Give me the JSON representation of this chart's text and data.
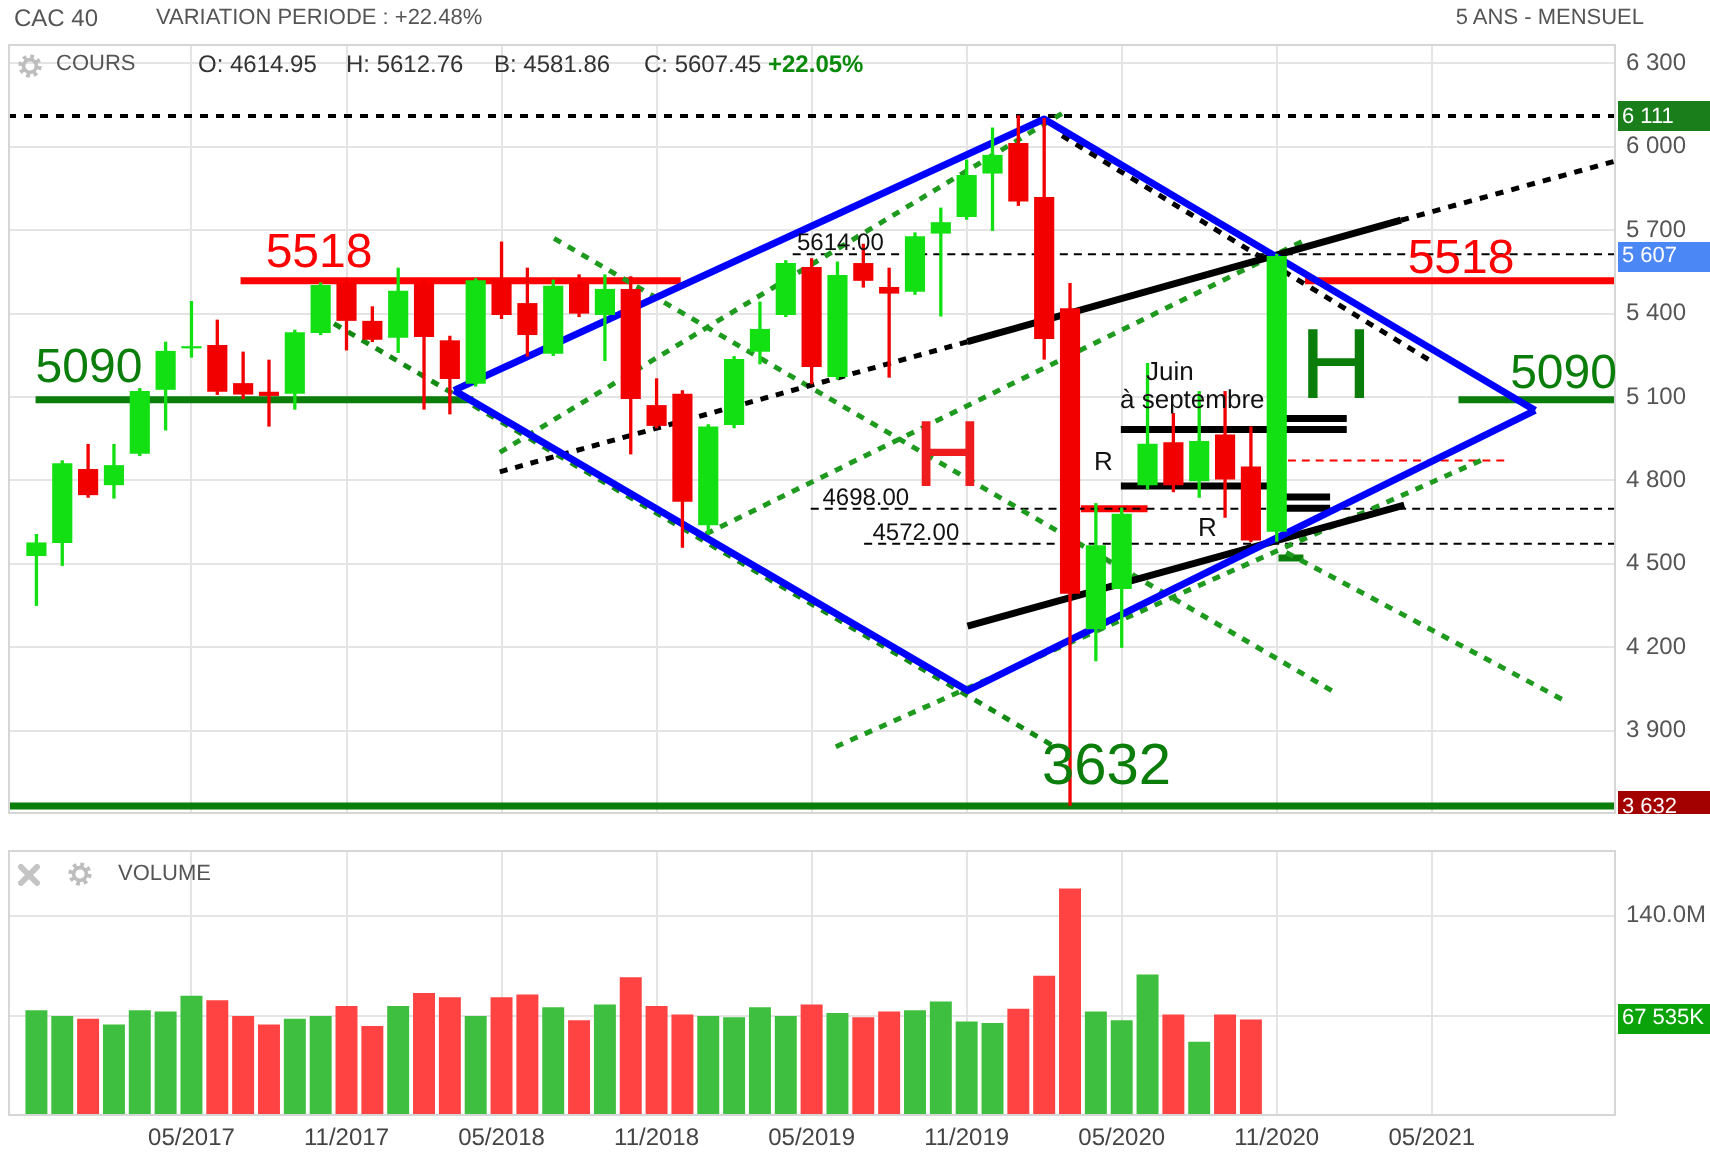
{
  "chart_data": [
    {
      "type": "candlestick",
      "title": "CAC 40",
      "subtitle": "VARIATION PERIODE : +22.48%",
      "x": [
        "2016-11",
        "2016-12",
        "2017-01",
        "2017-02",
        "2017-03",
        "2017-04",
        "2017-05",
        "2017-06",
        "2017-07",
        "2017-08",
        "2017-09",
        "2017-10",
        "2017-11",
        "2017-12",
        "2018-01",
        "2018-02",
        "2018-03",
        "2018-04",
        "2018-05",
        "2018-06",
        "2018-07",
        "2018-08",
        "2018-09",
        "2018-10",
        "2018-11",
        "2018-12",
        "2019-01",
        "2019-02",
        "2019-03",
        "2019-04",
        "2019-05",
        "2019-06",
        "2019-07",
        "2019-08",
        "2019-09",
        "2019-10",
        "2019-11",
        "2019-12",
        "2020-01",
        "2020-02",
        "2020-03",
        "2020-04",
        "2020-05",
        "2020-06",
        "2020-07",
        "2020-08",
        "2020-09",
        "2020-10",
        "2020-11"
      ],
      "ohlc": [
        [
          4528,
          4605,
          4351,
          4577
        ],
        [
          4575,
          4870,
          4495,
          4862
        ],
        [
          4841,
          4929,
          4740,
          4747
        ],
        [
          4783,
          4929,
          4737,
          4855
        ],
        [
          4896,
          5130,
          4890,
          5122
        ],
        [
          5126,
          5297,
          4982,
          5266
        ],
        [
          5275,
          5443,
          5244,
          5283
        ],
        [
          5287,
          5376,
          5110,
          5119
        ],
        [
          5150,
          5261,
          5095,
          5109
        ],
        [
          5119,
          5232,
          4996,
          5104
        ],
        [
          5112,
          5340,
          5057,
          5333
        ],
        [
          5330,
          5510,
          5325,
          5503
        ],
        [
          5510,
          5525,
          5270,
          5374
        ],
        [
          5374,
          5424,
          5300,
          5306
        ],
        [
          5313,
          5563,
          5261,
          5482
        ],
        [
          5508,
          5525,
          5057,
          5316
        ],
        [
          5304,
          5318,
          5040,
          5165
        ],
        [
          5148,
          5525,
          5140,
          5520
        ],
        [
          5520,
          5657,
          5383,
          5395
        ],
        [
          5438,
          5563,
          5248,
          5323
        ],
        [
          5256,
          5520,
          5250,
          5500
        ],
        [
          5513,
          5539,
          5390,
          5400
        ],
        [
          5395,
          5539,
          5232,
          5489
        ],
        [
          5489,
          5532,
          4896,
          5093
        ],
        [
          5071,
          5165,
          4990,
          4996
        ],
        [
          5112,
          5122,
          4560,
          4723
        ],
        [
          4639,
          5000,
          4608,
          4994
        ],
        [
          4999,
          5245,
          4990,
          5237
        ],
        [
          5263,
          5441,
          5220,
          5345
        ],
        [
          5395,
          5590,
          5390,
          5582
        ],
        [
          5568,
          5597,
          5148,
          5208
        ],
        [
          5172,
          5585,
          5165,
          5539
        ],
        [
          5582,
          5649,
          5496,
          5518
        ],
        [
          5496,
          5563,
          5172,
          5472
        ],
        [
          5479,
          5690,
          5470,
          5678
        ],
        [
          5688,
          5779,
          5392,
          5729
        ],
        [
          5748,
          5952,
          5740,
          5899
        ],
        [
          5904,
          6067,
          5700,
          5971
        ],
        [
          6014,
          6111,
          5790,
          5803
        ],
        [
          5820,
          6101,
          5237,
          5309
        ],
        [
          5419,
          5508,
          3632,
          4392
        ],
        [
          4265,
          4716,
          4152,
          4567
        ],
        [
          4409,
          4700,
          4200,
          4680
        ],
        [
          4783,
          5220,
          4770,
          4932
        ],
        [
          4937,
          5040,
          4760,
          4783
        ],
        [
          4797,
          5119,
          4740,
          4942
        ],
        [
          4965,
          5119,
          4668,
          4803
        ],
        [
          4850,
          4992,
          4580,
          4584
        ],
        [
          4614.95,
          5612.76,
          4581.86,
          5607.45
        ]
      ],
      "colors": [
        "#12e012",
        "#12e012",
        "#f20000",
        "#12e012",
        "#12e012",
        "#12e012",
        "#12e012",
        "#f20000",
        "#f20000",
        "#f20000",
        "#12e012",
        "#12e012",
        "#f20000",
        "#f20000",
        "#12e012",
        "#f20000",
        "#f20000",
        "#12e012",
        "#f20000",
        "#f20000",
        "#12e012",
        "#f20000",
        "#12e012",
        "#f20000",
        "#f20000",
        "#f20000",
        "#12e012",
        "#12e012",
        "#12e012",
        "#12e012",
        "#f20000",
        "#12e012",
        "#f20000",
        "#f20000",
        "#12e012",
        "#12e012",
        "#12e012",
        "#12e012",
        "#f20000",
        "#f20000",
        "#f20000",
        "#12e012",
        "#12e012",
        "#12e012",
        "#f20000",
        "#12e012",
        "#f20000",
        "#f20000",
        "#12e012"
      ],
      "series": [
        {
          "type": "line",
          "color": "#0000ff",
          "line_style": "solid",
          "x": [
            "2018-03-06",
            "2020-02-01",
            "2021-09-01"
          ],
          "values": [
            5124,
            6100,
            5052
          ]
        },
        {
          "type": "line",
          "color": "#0000ff",
          "line_style": "solid",
          "x": [
            "2018-03-06",
            "2019-11-02",
            "2021-09-01"
          ],
          "values": [
            5124,
            4044,
            5052
          ]
        },
        {
          "type": "line",
          "color": "#000000",
          "line_style": "dotted",
          "x": [
            "2018-04-29",
            "2019-11-02"
          ],
          "values": [
            4831,
            5299
          ]
        },
        {
          "type": "line",
          "color": "#000000",
          "line_style": "solid",
          "x": [
            "2019-11-02",
            "2021-03-26"
          ],
          "values": [
            5299,
            5736
          ]
        },
        {
          "type": "line",
          "color": "#000000",
          "line_style": "dotted",
          "x": [
            "2021-03-26",
            "2021-12-02"
          ],
          "values": [
            5736,
            5947
          ]
        },
        {
          "type": "line",
          "color": "#000000",
          "line_style": "solid",
          "x": [
            "2019-11-02",
            "2021-03-30"
          ],
          "values": [
            4276,
            4711
          ]
        },
        {
          "type": "line",
          "color": "#000000",
          "line_style": "dotted",
          "x": [
            "2020-02-21",
            "2021-04-27"
          ],
          "values": [
            6040,
            5235
          ]
        },
        {
          "type": "line",
          "color": "#138a13",
          "line_style": "dotted",
          "x": [
            "2017-10-17",
            "2020-02-09"
          ],
          "values": [
            5364,
            3849
          ]
        },
        {
          "type": "line",
          "color": "#1e9a1e",
          "line_style": "dotted",
          "x": [
            "2018-04-29",
            "2020-02-21"
          ],
          "values": [
            4901,
            6120
          ]
        },
        {
          "type": "line",
          "color": "#1e9a1e",
          "line_style": "dotted",
          "x": [
            "2018-12-29",
            "2020-11-30"
          ],
          "values": [
            4607,
            5659
          ]
        },
        {
          "type": "line",
          "color": "#1e9a1e",
          "line_style": "dotted",
          "x": [
            "2019-05-30",
            "2021-06-28"
          ],
          "values": [
            3842,
            4872
          ]
        },
        {
          "type": "line",
          "color": "#1e9a1e",
          "line_style": "dotted",
          "x": [
            "2018-07-02",
            "2021-01-05"
          ],
          "values": [
            5671,
            4044
          ]
        },
        {
          "type": "line",
          "color": "#1e9a1e",
          "line_style": "dotted",
          "x": [
            "2020-11-12",
            "2021-10-02"
          ],
          "values": [
            4541,
            4013
          ]
        },
        {
          "type": "line",
          "color": "#000000",
          "line_style": "dashed",
          "x": [
            "2019-04-09",
            "2021-12-05"
          ],
          "values": [
            5614,
            5614
          ]
        },
        {
          "type": "line",
          "color": "#000000",
          "line_style": "dashed",
          "x": [
            "2019-04-30",
            "2021-12-05"
          ],
          "values": [
            4698,
            4698
          ]
        },
        {
          "type": "line",
          "color": "#000000",
          "line_style": "dashed",
          "x": [
            "2019-07-02",
            "2021-12-05"
          ],
          "values": [
            4572,
            4572
          ]
        },
        {
          "type": "line",
          "color": "#ff0000",
          "line_style": "dashed",
          "x": [
            "2020-11-14",
            "2021-07-26"
          ],
          "values": [
            4872,
            4872
          ]
        },
        {
          "type": "line",
          "color": "#ff0000",
          "line_style": "solid",
          "x": [
            "2020-03-14",
            "2020-06-01"
          ],
          "values": [
            4698,
            4698
          ]
        },
        {
          "type": "line",
          "color": "#000000",
          "line_style": "solid",
          "x": [
            "2020-04-30",
            "2021-01-23"
          ],
          "values": [
            4983,
            4983
          ]
        },
        {
          "type": "line",
          "color": "#000000",
          "line_style": "solid",
          "x": [
            "2020-04-30",
            "2020-11-03"
          ],
          "values": [
            4780,
            4780
          ]
        },
        {
          "type": "line",
          "color": "#000000",
          "line_style": "solid",
          "x": [
            "2020-11-03",
            "2021-01-23"
          ],
          "values": [
            5023,
            5023
          ]
        },
        {
          "type": "line",
          "color": "#000000",
          "line_style": "solid",
          "x": [
            "2020-11-03",
            "2021-01-03"
          ],
          "values": [
            4740,
            4740
          ]
        },
        {
          "type": "line",
          "color": "#000000",
          "line_style": "solid",
          "x": [
            "2020-11-03",
            "2021-01-03"
          ],
          "values": [
            4700,
            4700
          ]
        },
        {
          "type": "line",
          "color": "#0b7d0b",
          "line_style": "solid",
          "x": [
            "2020-11-03",
            "2020-12-02"
          ],
          "values": [
            4521,
            4521
          ]
        },
        {
          "type": "line",
          "color": "#ff0000",
          "line_style": "solid",
          "x": [
            "2017-06-28",
            "2018-11-29"
          ],
          "values": [
            5518,
            5518
          ]
        },
        {
          "type": "line",
          "color": "#ff0000",
          "line_style": "solid",
          "x": [
            "2020-12-04",
            "2021-12-05"
          ],
          "values": [
            5518,
            5518
          ]
        },
        {
          "type": "line",
          "color": "#0b7d0b",
          "line_style": "solid",
          "x": [
            "2016-10-31",
            "2018-03-29"
          ],
          "values": [
            5090,
            5090
          ]
        },
        {
          "type": "line",
          "color": "#0b7d0b",
          "line_style": "solid",
          "x": [
            "2021-06-02",
            "2021-12-05"
          ],
          "values": [
            5090,
            5090
          ]
        }
      ],
      "ref_lines": [
        {
          "axis": "y",
          "value": 6111,
          "label": "6 111",
          "color": "#000000",
          "line_style": "dotted"
        },
        {
          "axis": "y",
          "value": 3632,
          "label": "3 632",
          "color": "#0b7d0b",
          "line_style": "solid"
        }
      ],
      "annotations": [
        "5 ANS - MENSUEL",
        "COURS",
        "O: 4614.95",
        "H: 5612.76",
        "B: 4581.86",
        "C: 5607.45",
        "+22.05%",
        "5 607",
        "3632",
        "H",
        "H",
        "R",
        "R",
        "Juin",
        "à septembre",
        {
          "text": "5518",
          "x": "2017-07-28",
          "y": 5518
        },
        {
          "text": "5518",
          "x": "2021-04-03",
          "y": 5518
        },
        {
          "text": "5090",
          "x": "2016-10-31",
          "y": 5090
        },
        {
          "text": "5090",
          "x": "2021-08-02",
          "y": 5090
        },
        {
          "text": "5614.00",
          "x": "2019-04-14",
          "y": 5614
        },
        {
          "text": "4698.00",
          "x": "2019-05-14",
          "y": 4698
        },
        {
          "text": "4572.00",
          "x": "2019-07-12",
          "y": 4572
        }
      ],
      "xlim": [
        "2016-09-28",
        "2021-12-05"
      ],
      "xticks": [
        {
          "value": "2017-05",
          "label": null
        },
        {
          "value": "2017-11",
          "label": null
        },
        {
          "value": "2018-05",
          "label": null
        },
        {
          "value": "2018-11",
          "label": null
        },
        {
          "value": "2019-05",
          "label": null
        },
        {
          "value": "2019-11",
          "label": null
        },
        {
          "value": "2020-05",
          "label": null
        },
        {
          "value": "2020-11",
          "label": null
        },
        {
          "value": "2021-05",
          "label": null
        }
      ],
      "ylim": [
        3600,
        6370
      ],
      "yticks": [
        {
          "value": 3900,
          "label": "3 900"
        },
        {
          "value": 4200,
          "label": "4 200"
        },
        {
          "value": 4500,
          "label": "4 500"
        },
        {
          "value": 4800,
          "label": "4 800"
        },
        {
          "value": 5100,
          "label": "5 100"
        },
        {
          "value": 5400,
          "label": "5 400"
        },
        {
          "value": 5700,
          "label": "5 700"
        },
        {
          "value": 6000,
          "label": "6 000"
        },
        {
          "value": 6300,
          "label": "6 300"
        }
      ],
      "grid": true,
      "tick_labels": "y"
    },
    {
      "type": "bar",
      "title": "VOLUME",
      "x": [
        "2016-11",
        "2016-12",
        "2017-01",
        "2017-02",
        "2017-03",
        "2017-04",
        "2017-05",
        "2017-06",
        "2017-07",
        "2017-08",
        "2017-09",
        "2017-10",
        "2017-11",
        "2017-12",
        "2018-01",
        "2018-02",
        "2018-03",
        "2018-04",
        "2018-05",
        "2018-06",
        "2018-07",
        "2018-08",
        "2018-09",
        "2018-10",
        "2018-11",
        "2018-12",
        "2019-01",
        "2019-02",
        "2019-03",
        "2019-04",
        "2019-05",
        "2019-06",
        "2019-07",
        "2019-08",
        "2019-09",
        "2019-10",
        "2019-11",
        "2019-12",
        "2020-01",
        "2020-02",
        "2020-03",
        "2020-04",
        "2020-05",
        "2020-06",
        "2020-07",
        "2020-08",
        "2020-09",
        "2020-10"
      ],
      "values": [
        74,
        70,
        68,
        64,
        74,
        73,
        84,
        81,
        70,
        64,
        68,
        70,
        77,
        63,
        77,
        86,
        83,
        70,
        83,
        85,
        76,
        67,
        78,
        97,
        77,
        71,
        70,
        69,
        76,
        70,
        78,
        72,
        69,
        73,
        74,
        80,
        66,
        65,
        75,
        98,
        159,
        73,
        67,
        99,
        71,
        52,
        71,
        67.535
      ],
      "colors": [
        "#3fbf3f",
        "#3fbf3f",
        "#ff4242",
        "#3fbf3f",
        "#3fbf3f",
        "#3fbf3f",
        "#3fbf3f",
        "#ff4242",
        "#ff4242",
        "#ff4242",
        "#3fbf3f",
        "#3fbf3f",
        "#ff4242",
        "#ff4242",
        "#3fbf3f",
        "#ff4242",
        "#ff4242",
        "#3fbf3f",
        "#ff4242",
        "#ff4242",
        "#3fbf3f",
        "#ff4242",
        "#3fbf3f",
        "#ff4242",
        "#ff4242",
        "#ff4242",
        "#3fbf3f",
        "#3fbf3f",
        "#3fbf3f",
        "#3fbf3f",
        "#ff4242",
        "#3fbf3f",
        "#ff4242",
        "#ff4242",
        "#3fbf3f",
        "#3fbf3f",
        "#3fbf3f",
        "#3fbf3f",
        "#ff4242",
        "#ff4242",
        "#ff4242",
        "#3fbf3f",
        "#3fbf3f",
        "#3fbf3f",
        "#ff4242",
        "#3fbf3f",
        "#ff4242",
        "#ff4242"
      ],
      "annotations": [
        "67 535K"
      ],
      "xlim": [
        "2016-09-28",
        "2021-12-05"
      ],
      "xticks": [
        {
          "value": "2017-05",
          "label": "05/2017"
        },
        {
          "value": "2017-11",
          "label": "11/2017"
        },
        {
          "value": "2018-05",
          "label": "05/2018"
        },
        {
          "value": "2018-11",
          "label": "11/2018"
        },
        {
          "value": "2019-05",
          "label": "05/2019"
        },
        {
          "value": "2019-11",
          "label": "11/2019"
        },
        {
          "value": "2020-05",
          "label": "05/2020"
        },
        {
          "value": "2020-11",
          "label": "11/2020"
        },
        {
          "value": "2021-05",
          "label": "05/2021"
        }
      ],
      "ylim": [
        0,
        186
      ],
      "yticks": [
        {
          "value": 70,
          "label": null
        },
        {
          "value": 140,
          "label": "140.0M"
        }
      ],
      "grid": true
    }
  ]
}
